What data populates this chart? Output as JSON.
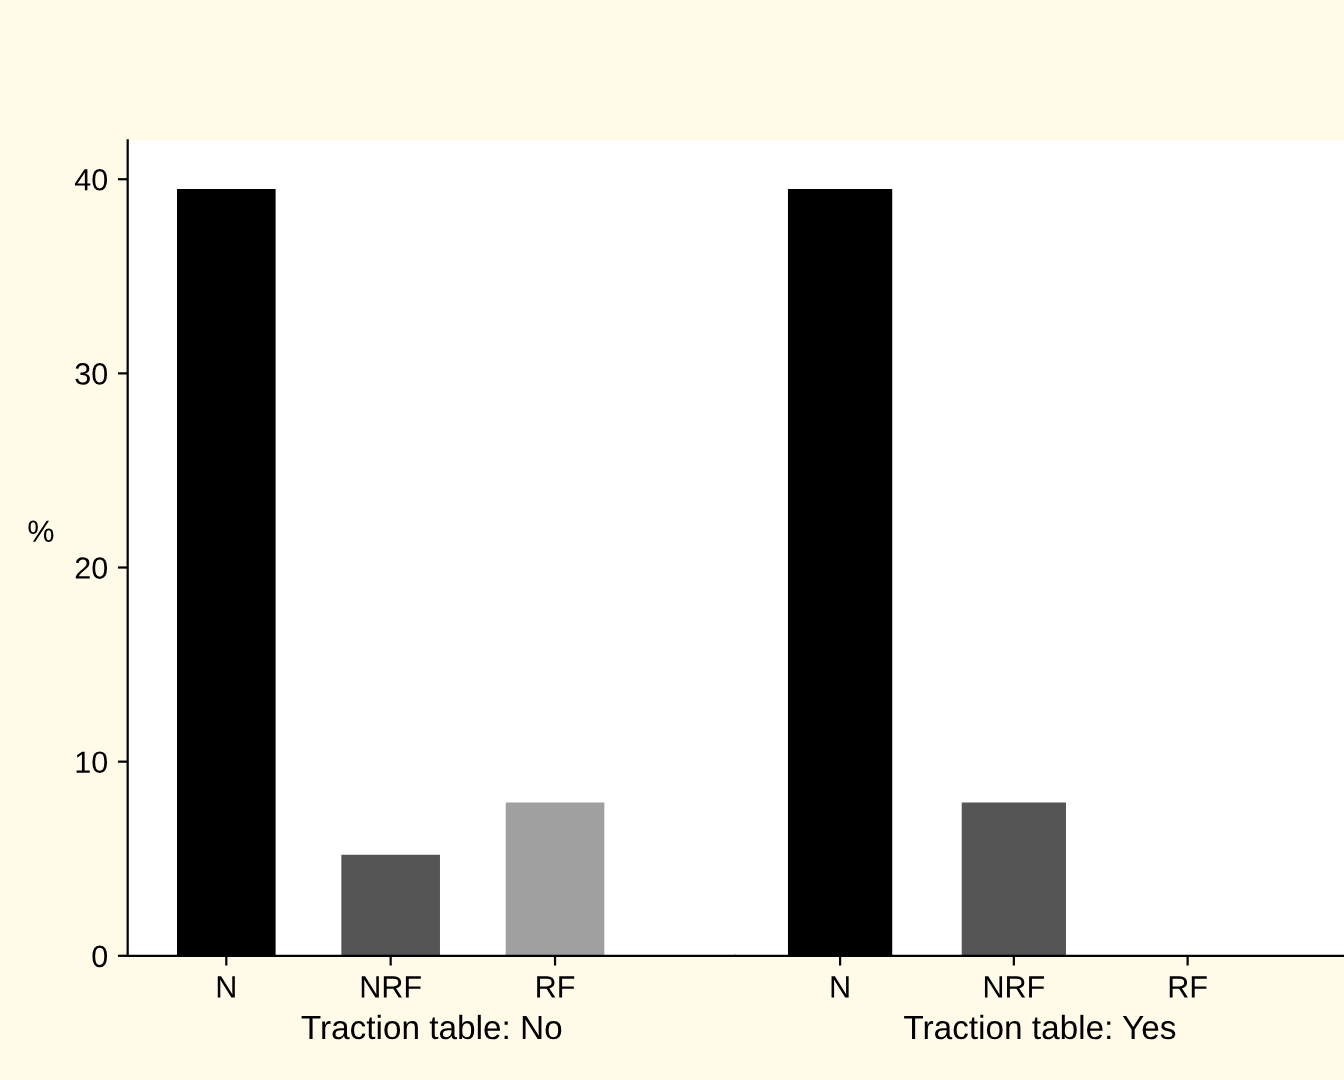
{
  "chart_data": [
    {
      "type": "bar",
      "categories": [
        "N",
        "NRF",
        "RF"
      ],
      "values": [
        39.5,
        5.2,
        7.9
      ],
      "colors": [
        "#000000",
        "#555555",
        "#a0a0a0"
      ],
      "xlabel": "Traction table: No",
      "ylabel": "%",
      "ylim": [
        0,
        42
      ],
      "yticks": [
        0,
        10,
        20,
        30,
        40
      ]
    },
    {
      "type": "bar",
      "categories": [
        "N",
        "NRF",
        "RF"
      ],
      "values": [
        39.5,
        7.9,
        0
      ],
      "colors": [
        "#000000",
        "#555555",
        "#a0a0a0"
      ],
      "xlabel": "Traction table: Yes",
      "ylim": [
        0,
        42
      ],
      "tick_labels": "x"
    }
  ]
}
